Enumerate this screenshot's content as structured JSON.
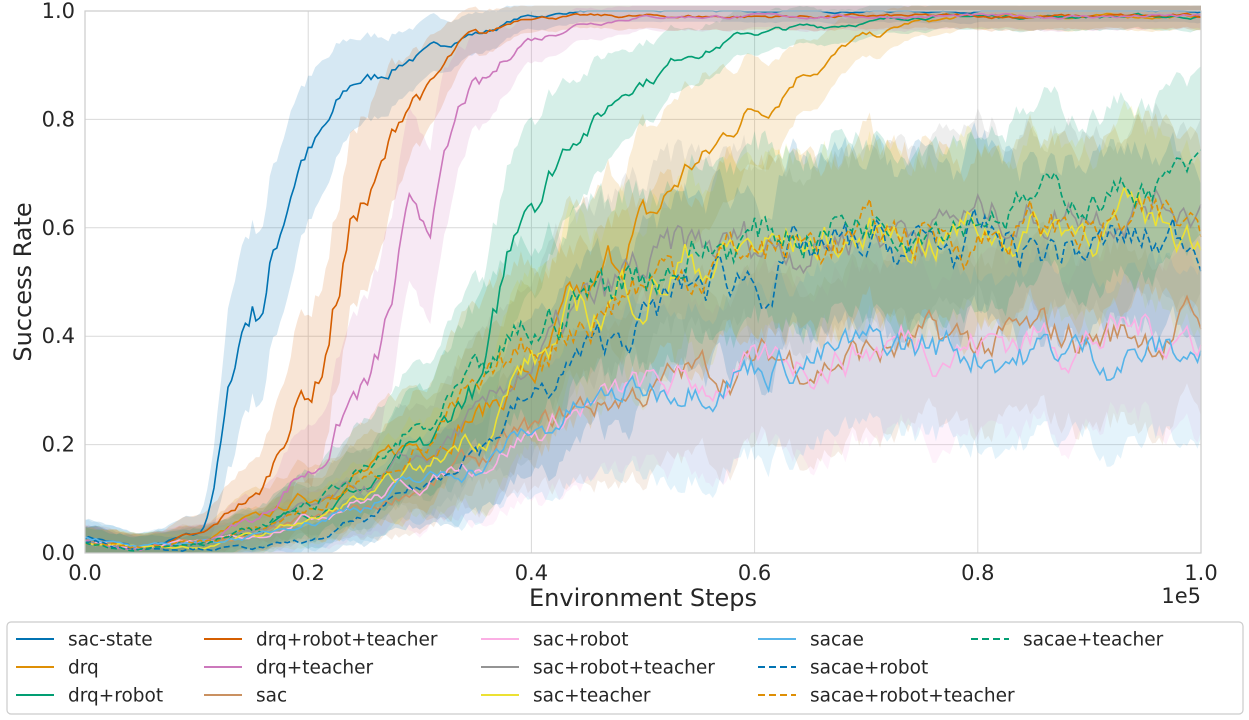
{
  "chart_data": {
    "type": "line",
    "xlabel": "Environment Steps",
    "ylabel": "Success Rate",
    "x_scale_label": "1e5",
    "xlim": [
      0,
      1.0
    ],
    "ylim": [
      0,
      1.0
    ],
    "x_ticks": [
      "0.0",
      "0.2",
      "0.4",
      "0.6",
      "0.8",
      "1.0"
    ],
    "y_ticks": [
      "0.0",
      "0.2",
      "0.4",
      "0.6",
      "0.8",
      "1.0"
    ],
    "grid": true,
    "legend_placement": "below plot, 5 columns",
    "x": [
      0,
      0.05,
      0.1,
      0.15,
      0.2,
      0.25,
      0.3,
      0.35,
      0.4,
      0.45,
      0.5,
      0.55,
      0.6,
      0.65,
      0.7,
      0.75,
      0.8,
      0.85,
      0.9,
      0.95,
      1.0
    ],
    "series": [
      {
        "name": "sac-state",
        "color": "#0173b2",
        "dash": "solid",
        "values": [
          0.03,
          0.01,
          0.03,
          0.45,
          0.75,
          0.87,
          0.92,
          0.96,
          0.99,
          1.0,
          1.0,
          1.0,
          1.0,
          1.0,
          1.0,
          1.0,
          1.0,
          1.0,
          1.0,
          1.0,
          1.0
        ]
      },
      {
        "name": "drq",
        "color": "#de8f05",
        "dash": "solid",
        "values": [
          0.02,
          0.01,
          0.02,
          0.06,
          0.1,
          0.15,
          0.2,
          0.26,
          0.33,
          0.45,
          0.6,
          0.72,
          0.82,
          0.9,
          0.95,
          0.98,
          0.99,
          0.99,
          0.99,
          0.99,
          0.99
        ]
      },
      {
        "name": "drq+robot",
        "color": "#029e73",
        "dash": "solid",
        "values": [
          0.02,
          0.01,
          0.02,
          0.04,
          0.08,
          0.12,
          0.18,
          0.3,
          0.68,
          0.8,
          0.88,
          0.93,
          0.96,
          0.97,
          0.98,
          0.99,
          0.99,
          0.99,
          0.99,
          0.99,
          0.99
        ]
      },
      {
        "name": "drq+robot+teacher",
        "color": "#d55e00",
        "dash": "solid",
        "values": [
          0.02,
          0.01,
          0.03,
          0.1,
          0.3,
          0.65,
          0.85,
          0.95,
          0.99,
          0.99,
          0.99,
          0.99,
          0.99,
          0.99,
          0.99,
          0.99,
          0.99,
          0.99,
          0.99,
          0.99,
          0.99
        ]
      },
      {
        "name": "drq+teacher",
        "color": "#cc78bc",
        "dash": "solid",
        "values": [
          0.02,
          0.01,
          0.02,
          0.06,
          0.15,
          0.3,
          0.6,
          0.85,
          0.95,
          0.98,
          0.99,
          0.99,
          0.99,
          0.99,
          0.99,
          0.99,
          0.99,
          0.99,
          0.99,
          0.99,
          0.99
        ]
      },
      {
        "name": "sac",
        "color": "#ca9161",
        "dash": "solid",
        "values": [
          0.02,
          0.01,
          0.02,
          0.03,
          0.06,
          0.08,
          0.12,
          0.17,
          0.22,
          0.27,
          0.3,
          0.33,
          0.35,
          0.36,
          0.37,
          0.38,
          0.38,
          0.39,
          0.4,
          0.41,
          0.42
        ]
      },
      {
        "name": "sac+robot",
        "color": "#fbafe4",
        "dash": "solid",
        "values": [
          0.02,
          0.01,
          0.02,
          0.03,
          0.07,
          0.1,
          0.13,
          0.17,
          0.22,
          0.27,
          0.3,
          0.31,
          0.33,
          0.36,
          0.38,
          0.4,
          0.39,
          0.4,
          0.4,
          0.41,
          0.41
        ]
      },
      {
        "name": "sac+robot+teacher",
        "color": "#949494",
        "dash": "solid",
        "values": [
          0.02,
          0.01,
          0.02,
          0.04,
          0.08,
          0.12,
          0.17,
          0.24,
          0.35,
          0.44,
          0.51,
          0.55,
          0.57,
          0.58,
          0.6,
          0.61,
          0.62,
          0.63,
          0.64,
          0.65,
          0.65
        ]
      },
      {
        "name": "sac+teacher",
        "color": "#ece133",
        "dash": "solid",
        "values": [
          0.02,
          0.01,
          0.01,
          0.03,
          0.06,
          0.1,
          0.15,
          0.22,
          0.35,
          0.44,
          0.5,
          0.54,
          0.56,
          0.57,
          0.58,
          0.59,
          0.6,
          0.6,
          0.61,
          0.61,
          0.6
        ]
      },
      {
        "name": "sacae",
        "color": "#56b4e9",
        "dash": "solid",
        "values": [
          0.03,
          0.01,
          0.02,
          0.03,
          0.06,
          0.09,
          0.13,
          0.16,
          0.22,
          0.27,
          0.3,
          0.33,
          0.35,
          0.36,
          0.37,
          0.38,
          0.38,
          0.37,
          0.37,
          0.37,
          0.37
        ]
      },
      {
        "name": "sacae+robot",
        "color": "#0173b2",
        "dash": "dashed",
        "values": [
          0.02,
          0.01,
          0.01,
          0.01,
          0.02,
          0.06,
          0.12,
          0.2,
          0.28,
          0.36,
          0.43,
          0.49,
          0.52,
          0.54,
          0.55,
          0.56,
          0.56,
          0.56,
          0.56,
          0.57,
          0.58
        ]
      },
      {
        "name": "sacae+robot+teacher",
        "color": "#de8f05",
        "dash": "dashed",
        "values": [
          0.02,
          0.01,
          0.02,
          0.04,
          0.08,
          0.13,
          0.2,
          0.28,
          0.37,
          0.45,
          0.5,
          0.54,
          0.56,
          0.57,
          0.58,
          0.59,
          0.59,
          0.6,
          0.6,
          0.6,
          0.6
        ]
      },
      {
        "name": "sacae+teacher",
        "color": "#029e73",
        "dash": "dashed",
        "values": [
          0.02,
          0.01,
          0.02,
          0.04,
          0.09,
          0.15,
          0.22,
          0.3,
          0.4,
          0.48,
          0.53,
          0.56,
          0.58,
          0.6,
          0.62,
          0.63,
          0.64,
          0.65,
          0.66,
          0.68,
          0.7
        ]
      }
    ]
  }
}
